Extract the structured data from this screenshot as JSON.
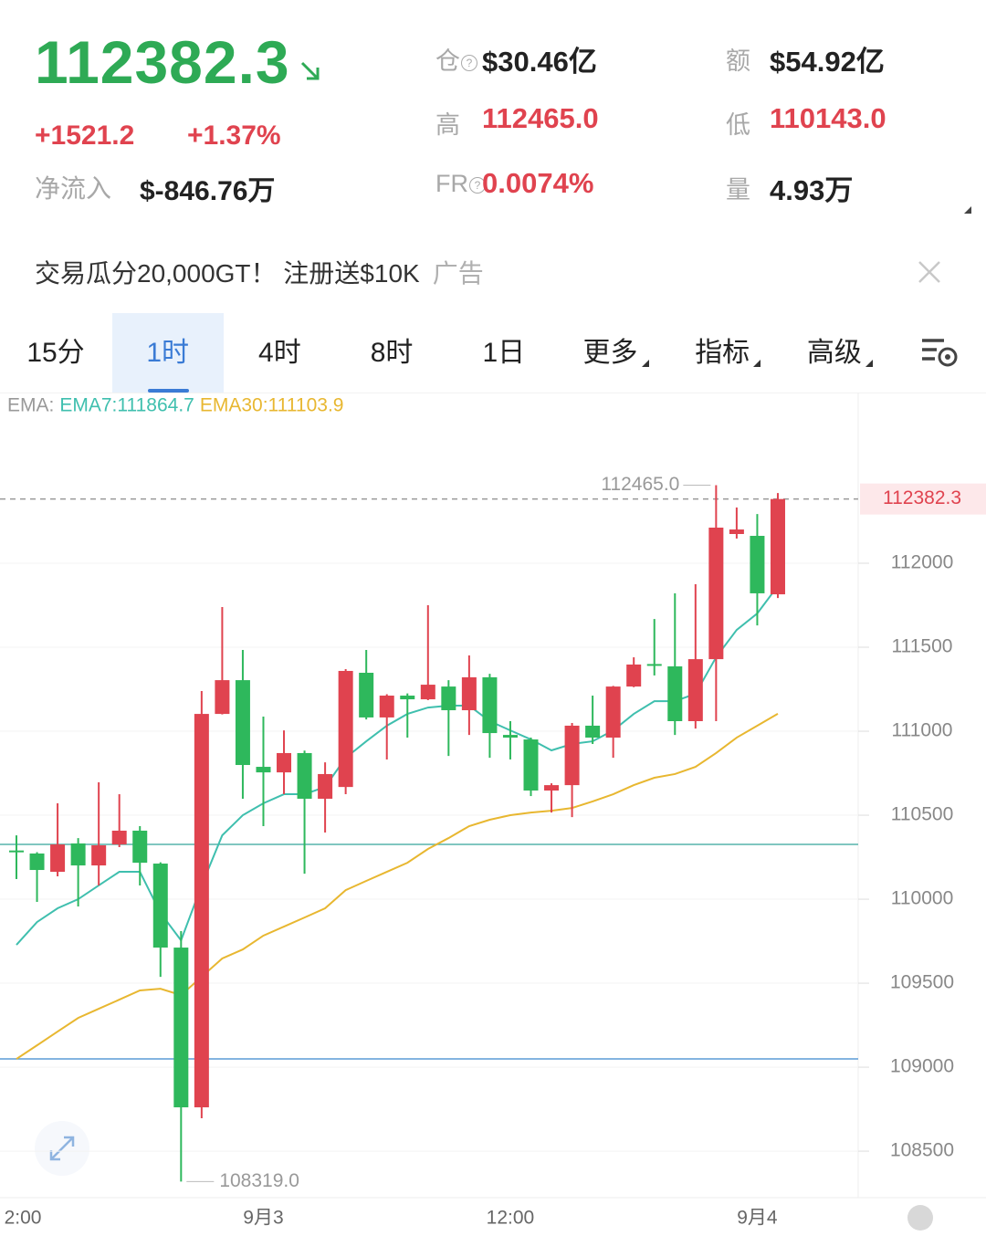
{
  "header": {
    "price": "112382.3",
    "change": "+1521.2",
    "change_pct": "+1.37%",
    "net_inflow_label": "净流入",
    "net_inflow": "$-846.76万",
    "stats": [
      {
        "label": "仓",
        "value": "$30.46亿",
        "color": "#222222",
        "info": true
      },
      {
        "label": "额",
        "value": "$54.92亿",
        "color": "#222222",
        "info": false
      },
      {
        "label": "高",
        "value": "112465.0",
        "color": "#e0434f",
        "info": false
      },
      {
        "label": "低",
        "value": "110143.0",
        "color": "#e0434f",
        "info": false
      },
      {
        "label": "FR",
        "value": "0.0074%",
        "color": "#e0434f",
        "info": true
      },
      {
        "label": "量",
        "value": "4.93万",
        "color": "#222222",
        "info": false
      }
    ]
  },
  "ad": {
    "text": "交易瓜分20,000GT！ 注册送$10K",
    "tag": "广告"
  },
  "tabs": [
    {
      "label": "15分",
      "dropdown": false
    },
    {
      "label": "1时",
      "dropdown": false
    },
    {
      "label": "4时",
      "dropdown": false
    },
    {
      "label": "8时",
      "dropdown": false
    },
    {
      "label": "1日",
      "dropdown": false
    },
    {
      "label": "更多",
      "dropdown": true
    },
    {
      "label": "指标",
      "dropdown": true
    },
    {
      "label": "高级",
      "dropdown": true
    }
  ],
  "active_tab": 1,
  "chart_data": {
    "type": "candlestick",
    "indicator_label": "EMA:",
    "categories": [
      "2:00",
      null,
      null,
      null,
      null,
      null,
      null,
      null,
      null,
      null,
      null,
      null,
      "9月3",
      null,
      null,
      null,
      null,
      null,
      null,
      null,
      null,
      null,
      null,
      null,
      "12:00",
      null,
      null,
      null,
      null,
      null,
      null,
      null,
      null,
      null,
      null,
      null,
      "9月4",
      null
    ],
    "open": [
      110290,
      110272,
      110163,
      110332,
      110201,
      110326,
      110408,
      110212,
      109712,
      108761,
      111103,
      111304,
      110788,
      110755,
      110870,
      110598,
      110668,
      111348,
      111082,
      111212,
      111190,
      111266,
      111125,
      111321,
      110978,
      110951,
      110647,
      110679,
      111033,
      110962,
      111266,
      111400,
      111386,
      111060,
      111429,
      112174,
      112163,
      111815
    ],
    "high": [
      110380,
      110280,
      110571,
      110364,
      110696,
      110625,
      110435,
      110220,
      109810,
      111239,
      111739,
      111484,
      111087,
      111005,
      110885,
      110815,
      111370,
      111484,
      111220,
      111225,
      111750,
      111304,
      111451,
      111342,
      111060,
      110962,
      110690,
      111049,
      111212,
      111270,
      111440,
      111668,
      111821,
      111875,
      112465,
      112332,
      112293,
      112418
    ],
    "low": [
      110120,
      109984,
      110136,
      109957,
      110082,
      110310,
      110082,
      109538,
      108319,
      108696,
      111100,
      110598,
      110435,
      110625,
      110152,
      110397,
      110625,
      111070,
      110832,
      110962,
      111185,
      110853,
      110978,
      110842,
      110832,
      110614,
      110516,
      110489,
      110924,
      110842,
      111262,
      111332,
      110978,
      111016,
      111060,
      112147,
      111630,
      111793
    ],
    "close": [
      110285,
      110174,
      110326,
      110201,
      110321,
      110408,
      110217,
      109712,
      108761,
      111103,
      111304,
      110799,
      110755,
      110870,
      110598,
      110745,
      111359,
      111082,
      111212,
      111190,
      111277,
      111125,
      111321,
      110989,
      110962,
      110647,
      110679,
      111033,
      110962,
      111266,
      111397,
      111395,
      111060,
      111429,
      112212,
      112201,
      111821,
      112382.3
    ],
    "up_color": "#e0434f",
    "down_color": "#2eb85c",
    "series": [
      {
        "name": "EMA7:111864.7",
        "color": "#3fbfae",
        "values": [
          109728,
          109864,
          109946,
          110000,
          110082,
          110163,
          110163,
          109918,
          109755,
          110082,
          110380,
          110500,
          110571,
          110625,
          110625,
          110668,
          110842,
          110940,
          111033,
          111103,
          111141,
          111152,
          111152,
          111060,
          111005,
          110951,
          110886,
          110924,
          110940,
          111005,
          111103,
          111179,
          111179,
          111223,
          111440,
          111603,
          111701,
          111864.7
        ]
      },
      {
        "name": "EMA30:111103.9",
        "color": "#e8b730",
        "values": [
          109049,
          109130,
          109212,
          109293,
          109348,
          109402,
          109457,
          109467,
          109429,
          109538,
          109647,
          109701,
          109783,
          109837,
          109891,
          109946,
          110054,
          110109,
          110163,
          110217,
          110299,
          110364,
          110435,
          110473,
          110500,
          110516,
          110527,
          110543,
          110582,
          110625,
          110679,
          110723,
          110745,
          110788,
          110870,
          110962,
          111033,
          111103.9
        ]
      }
    ],
    "horizontal_lines": [
      {
        "value": 110326,
        "color": "#56b3ab"
      },
      {
        "value": 109049,
        "color": "#5b9bd5"
      }
    ],
    "last_price": 112382.3,
    "high_annotation": {
      "value": 112465,
      "label": "112465.0"
    },
    "low_annotation": {
      "value": 108319,
      "label": "108319.0"
    },
    "ylim": [
      108220,
      112850
    ],
    "yticks": [
      108500,
      109000,
      109500,
      110000,
      110500,
      111000,
      111500,
      112000
    ],
    "grid": true
  }
}
